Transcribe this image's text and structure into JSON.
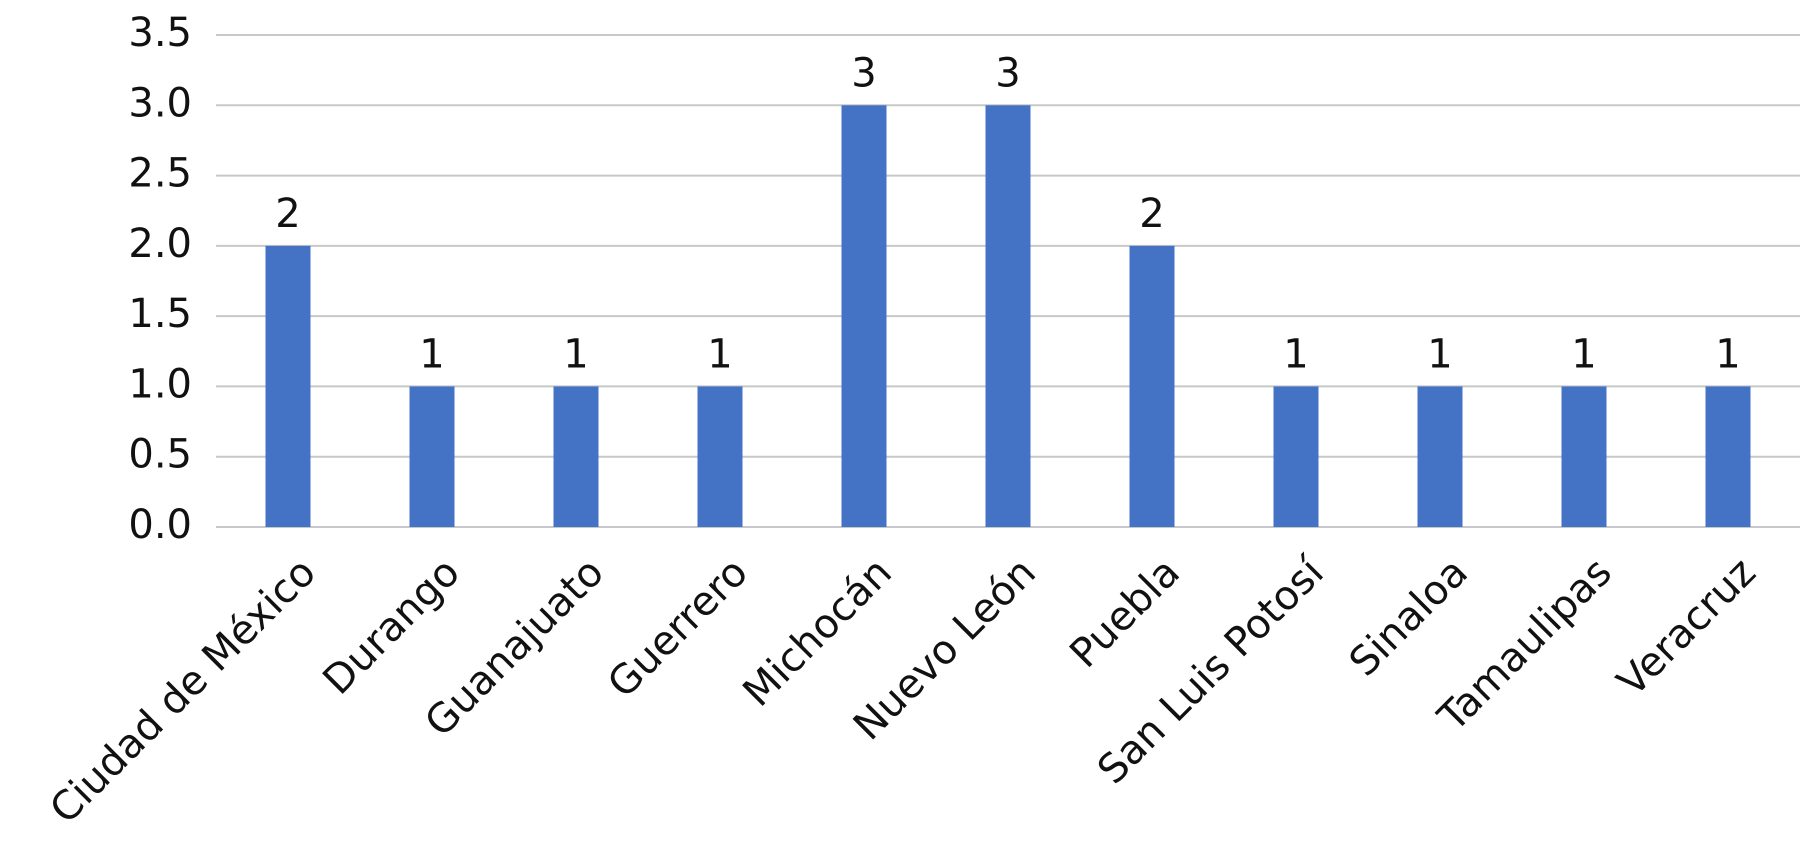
{
  "chart_data": {
    "type": "bar",
    "categories": [
      "Ciudad de México",
      "Durango",
      "Guanajuato",
      "Guerrero",
      "Michocán",
      "Nuevo León",
      "Puebla",
      "San Luis Potosí",
      "Sinaloa",
      "Tamaulipas",
      "Veracruz"
    ],
    "values": [
      2,
      1,
      1,
      1,
      3,
      3,
      2,
      1,
      1,
      1,
      1
    ],
    "color": "#4472c4",
    "ylim": [
      0,
      3.5
    ],
    "yticks": [
      {
        "value": 0,
        "label": "0.0"
      },
      0.5,
      {
        "value": 1,
        "label": "1.0"
      },
      1.5,
      {
        "value": 2,
        "label": "2.0"
      },
      2.5,
      {
        "value": 3,
        "label": "3.0"
      },
      3.5
    ],
    "grid": true
  }
}
